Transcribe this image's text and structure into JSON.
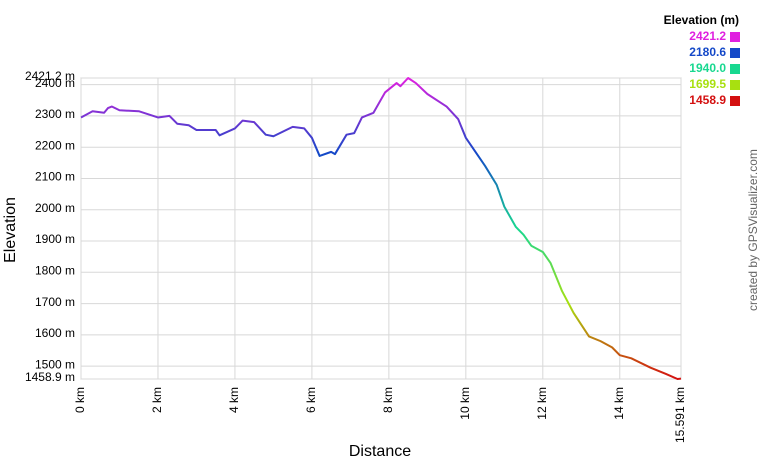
{
  "chart_data": {
    "type": "line",
    "ylabel": "Elevation",
    "xlabel": "Distance",
    "credit": "created by GPSVisualizer.com",
    "x": [
      0,
      0.3,
      0.6,
      0.7,
      0.8,
      1.0,
      1.5,
      2.0,
      2.3,
      2.5,
      2.8,
      3.0,
      3.5,
      3.6,
      4.0,
      4.2,
      4.5,
      4.8,
      5.0,
      5.5,
      5.8,
      6.0,
      6.2,
      6.5,
      6.6,
      6.9,
      7.1,
      7.3,
      7.6,
      7.9,
      8.2,
      8.3,
      8.5,
      8.7,
      9.0,
      9.5,
      9.8,
      10.0,
      10.5,
      10.8,
      11.0,
      11.3,
      11.5,
      11.7,
      12.0,
      12.2,
      12.5,
      12.8,
      13.2,
      13.5,
      13.8,
      14.0,
      14.3,
      14.8,
      15.2,
      15.5,
      15.591
    ],
    "values": [
      2295,
      2315,
      2310,
      2325,
      2330,
      2318,
      2315,
      2295,
      2300,
      2275,
      2270,
      2255,
      2255,
      2238,
      2260,
      2285,
      2280,
      2240,
      2235,
      2265,
      2260,
      2230,
      2172,
      2185,
      2178,
      2240,
      2245,
      2295,
      2310,
      2375,
      2405,
      2395,
      2421.2,
      2405,
      2370,
      2330,
      2290,
      2230,
      2140,
      2080,
      2010,
      1945,
      1920,
      1885,
      1865,
      1830,
      1740,
      1670,
      1595,
      1580,
      1560,
      1535,
      1525,
      1495,
      1475,
      1458.9,
      1460
    ],
    "xlim": [
      0,
      15.591
    ],
    "xticks": [
      {
        "value": 0,
        "label": "0 km"
      },
      {
        "value": 2,
        "label": "2 km"
      },
      {
        "value": 4,
        "label": "4 km"
      },
      {
        "value": 6,
        "label": "6 km"
      },
      {
        "value": 8,
        "label": "8 km"
      },
      {
        "value": 10,
        "label": "10 km"
      },
      {
        "value": 12,
        "label": "12 km"
      },
      {
        "value": 14,
        "label": "14 km"
      },
      {
        "value": 15.591,
        "label": "15.591 km"
      }
    ],
    "ylim": [
      1458.9,
      2421.2
    ],
    "yticks": [
      {
        "value": 1458.9,
        "label": "1458.9 m"
      },
      {
        "value": 1500,
        "label": "1500 m"
      },
      {
        "value": 1600,
        "label": "1600 m"
      },
      {
        "value": 1700,
        "label": "1700 m"
      },
      {
        "value": 1800,
        "label": "1800 m"
      },
      {
        "value": 1900,
        "label": "1900 m"
      },
      {
        "value": 2000,
        "label": "2000 m"
      },
      {
        "value": 2100,
        "label": "2100 m"
      },
      {
        "value": 2200,
        "label": "2200 m"
      },
      {
        "value": 2300,
        "label": "2300 m"
      },
      {
        "value": 2400,
        "label": "2400 m"
      },
      {
        "value": 2421.2,
        "label": "2421.2 m"
      }
    ],
    "grid": true,
    "legend": {
      "title": "Elevation (m)",
      "stops": [
        {
          "value": 2421.2,
          "color": "#e020e0"
        },
        {
          "value": 2180.6,
          "color": "#1448c8"
        },
        {
          "value": {
            "value": 1940,
            "label": "1940.0"
          },
          "color": "#18d890"
        },
        {
          "value": 1699.5,
          "color": "#a8e010"
        },
        {
          "value": 1458.9,
          "color": "#d41010"
        }
      ]
    }
  }
}
